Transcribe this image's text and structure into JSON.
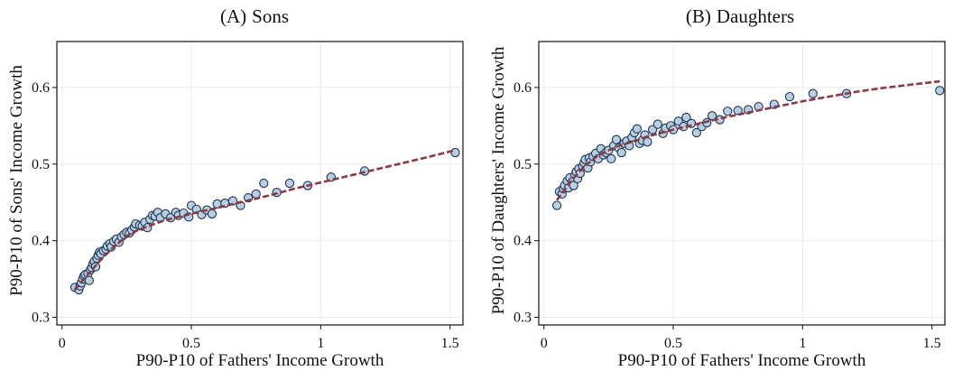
{
  "colors": {
    "marker_fill": "#b8cfe3",
    "marker_edge": "#1e3550",
    "fit_line": "#8b3a45",
    "grid": "#e8eef2"
  },
  "chart_data": [
    {
      "type": "scatter",
      "title": "(A) Sons",
      "title_prefix": "(A)",
      "title_text": "Sons",
      "xlabel": "P90-P10 of Fathers' Income Growth",
      "ylabel": "P90-P10 of Sons' Income Growth",
      "xlim": [
        -0.02,
        1.55
      ],
      "ylim": [
        0.29,
        0.66
      ],
      "xticks": [
        0,
        0.5,
        1,
        1.5
      ],
      "xtick_labels": [
        "0",
        "0.5",
        "1",
        "1.5"
      ],
      "yticks": [
        0.3,
        0.4,
        0.5,
        0.6
      ],
      "ytick_labels": [
        "0.3",
        "0.4",
        "0.5",
        "0.6"
      ],
      "grid": true,
      "points": [
        [
          0.05,
          0.339
        ],
        [
          0.065,
          0.336
        ],
        [
          0.07,
          0.341
        ],
        [
          0.075,
          0.345
        ],
        [
          0.08,
          0.35
        ],
        [
          0.085,
          0.354
        ],
        [
          0.09,
          0.356
        ],
        [
          0.1,
          0.357
        ],
        [
          0.105,
          0.348
        ],
        [
          0.11,
          0.362
        ],
        [
          0.115,
          0.365
        ],
        [
          0.12,
          0.37
        ],
        [
          0.125,
          0.373
        ],
        [
          0.13,
          0.366
        ],
        [
          0.135,
          0.377
        ],
        [
          0.14,
          0.381
        ],
        [
          0.145,
          0.385
        ],
        [
          0.15,
          0.383
        ],
        [
          0.16,
          0.387
        ],
        [
          0.17,
          0.389
        ],
        [
          0.175,
          0.393
        ],
        [
          0.185,
          0.396
        ],
        [
          0.19,
          0.392
        ],
        [
          0.2,
          0.399
        ],
        [
          0.21,
          0.402
        ],
        [
          0.22,
          0.398
        ],
        [
          0.23,
          0.405
        ],
        [
          0.24,
          0.408
        ],
        [
          0.25,
          0.411
        ],
        [
          0.26,
          0.41
        ],
        [
          0.27,
          0.414
        ],
        [
          0.28,
          0.418
        ],
        [
          0.285,
          0.422
        ],
        [
          0.3,
          0.42
        ],
        [
          0.31,
          0.419
        ],
        [
          0.32,
          0.424
        ],
        [
          0.33,
          0.417
        ],
        [
          0.34,
          0.428
        ],
        [
          0.35,
          0.433
        ],
        [
          0.36,
          0.432
        ],
        [
          0.37,
          0.437
        ],
        [
          0.38,
          0.43
        ],
        [
          0.4,
          0.435
        ],
        [
          0.42,
          0.43
        ],
        [
          0.44,
          0.437
        ],
        [
          0.45,
          0.433
        ],
        [
          0.47,
          0.436
        ],
        [
          0.49,
          0.431
        ],
        [
          0.5,
          0.446
        ],
        [
          0.52,
          0.441
        ],
        [
          0.54,
          0.434
        ],
        [
          0.56,
          0.44
        ],
        [
          0.58,
          0.435
        ],
        [
          0.6,
          0.448
        ],
        [
          0.63,
          0.449
        ],
        [
          0.66,
          0.452
        ],
        [
          0.69,
          0.446
        ],
        [
          0.72,
          0.456
        ],
        [
          0.75,
          0.461
        ],
        [
          0.78,
          0.475
        ],
        [
          0.83,
          0.463
        ],
        [
          0.88,
          0.475
        ],
        [
          0.95,
          0.472
        ],
        [
          1.04,
          0.483
        ],
        [
          1.17,
          0.491
        ],
        [
          1.52,
          0.515
        ]
      ],
      "fit": [
        [
          0.05,
          0.336
        ],
        [
          0.1,
          0.356
        ],
        [
          0.15,
          0.375
        ],
        [
          0.2,
          0.392
        ],
        [
          0.25,
          0.406
        ],
        [
          0.3,
          0.415
        ],
        [
          0.35,
          0.421
        ],
        [
          0.4,
          0.427
        ],
        [
          0.5,
          0.435
        ],
        [
          0.6,
          0.443
        ],
        [
          0.7,
          0.451
        ],
        [
          0.8,
          0.459
        ],
        [
          0.9,
          0.468
        ],
        [
          1.0,
          0.476
        ],
        [
          1.1,
          0.484
        ],
        [
          1.2,
          0.492
        ],
        [
          1.3,
          0.5
        ],
        [
          1.4,
          0.508
        ],
        [
          1.52,
          0.518
        ]
      ]
    },
    {
      "type": "scatter",
      "title": "(B) Daughters",
      "title_prefix": "(B)",
      "title_text": "Daughters",
      "xlabel": "P90-P10 of Fathers' Income Growth",
      "ylabel": "P90-P10 of Daughters' Income Growth",
      "xlim": [
        -0.02,
        1.55
      ],
      "ylim": [
        0.29,
        0.66
      ],
      "xticks": [
        0,
        0.5,
        1,
        1.5
      ],
      "xtick_labels": [
        "0",
        "0.5",
        "1",
        "1.5"
      ],
      "yticks": [
        0.3,
        0.4,
        0.5,
        0.6
      ],
      "ytick_labels": [
        "0.3",
        "0.4",
        "0.5",
        "0.6"
      ],
      "grid": true,
      "points": [
        [
          0.05,
          0.446
        ],
        [
          0.06,
          0.464
        ],
        [
          0.07,
          0.461
        ],
        [
          0.075,
          0.468
        ],
        [
          0.08,
          0.472
        ],
        [
          0.09,
          0.478
        ],
        [
          0.095,
          0.469
        ],
        [
          0.1,
          0.482
        ],
        [
          0.11,
          0.477
        ],
        [
          0.115,
          0.472
        ],
        [
          0.12,
          0.486
        ],
        [
          0.125,
          0.49
        ],
        [
          0.13,
          0.481
        ],
        [
          0.135,
          0.494
        ],
        [
          0.14,
          0.488
        ],
        [
          0.15,
          0.497
        ],
        [
          0.155,
          0.502
        ],
        [
          0.16,
          0.506
        ],
        [
          0.17,
          0.495
        ],
        [
          0.175,
          0.508
        ],
        [
          0.18,
          0.503
        ],
        [
          0.19,
          0.51
        ],
        [
          0.2,
          0.514
        ],
        [
          0.21,
          0.507
        ],
        [
          0.22,
          0.52
        ],
        [
          0.23,
          0.512
        ],
        [
          0.24,
          0.515
        ],
        [
          0.25,
          0.518
        ],
        [
          0.26,
          0.507
        ],
        [
          0.27,
          0.524
        ],
        [
          0.28,
          0.532
        ],
        [
          0.29,
          0.521
        ],
        [
          0.3,
          0.515
        ],
        [
          0.31,
          0.527
        ],
        [
          0.32,
          0.53
        ],
        [
          0.33,
          0.524
        ],
        [
          0.34,
          0.535
        ],
        [
          0.35,
          0.541
        ],
        [
          0.36,
          0.546
        ],
        [
          0.37,
          0.527
        ],
        [
          0.38,
          0.531
        ],
        [
          0.39,
          0.538
        ],
        [
          0.4,
          0.529
        ],
        [
          0.42,
          0.545
        ],
        [
          0.44,
          0.552
        ],
        [
          0.46,
          0.54
        ],
        [
          0.47,
          0.547
        ],
        [
          0.49,
          0.55
        ],
        [
          0.5,
          0.545
        ],
        [
          0.52,
          0.556
        ],
        [
          0.54,
          0.549
        ],
        [
          0.55,
          0.561
        ],
        [
          0.57,
          0.553
        ],
        [
          0.59,
          0.541
        ],
        [
          0.61,
          0.549
        ],
        [
          0.63,
          0.554
        ],
        [
          0.65,
          0.563
        ],
        [
          0.68,
          0.558
        ],
        [
          0.71,
          0.569
        ],
        [
          0.75,
          0.57
        ],
        [
          0.79,
          0.571
        ],
        [
          0.83,
          0.575
        ],
        [
          0.89,
          0.578
        ],
        [
          0.95,
          0.588
        ],
        [
          1.04,
          0.592
        ],
        [
          1.17,
          0.592
        ],
        [
          1.53,
          0.596
        ]
      ],
      "fit": [
        [
          0.05,
          0.453
        ],
        [
          0.1,
          0.476
        ],
        [
          0.15,
          0.495
        ],
        [
          0.2,
          0.509
        ],
        [
          0.25,
          0.518
        ],
        [
          0.3,
          0.525
        ],
        [
          0.35,
          0.53
        ],
        [
          0.4,
          0.536
        ],
        [
          0.5,
          0.545
        ],
        [
          0.6,
          0.553
        ],
        [
          0.7,
          0.561
        ],
        [
          0.8,
          0.568
        ],
        [
          0.9,
          0.575
        ],
        [
          1.0,
          0.582
        ],
        [
          1.1,
          0.588
        ],
        [
          1.2,
          0.594
        ],
        [
          1.3,
          0.599
        ],
        [
          1.4,
          0.603
        ],
        [
          1.53,
          0.608
        ]
      ]
    }
  ]
}
